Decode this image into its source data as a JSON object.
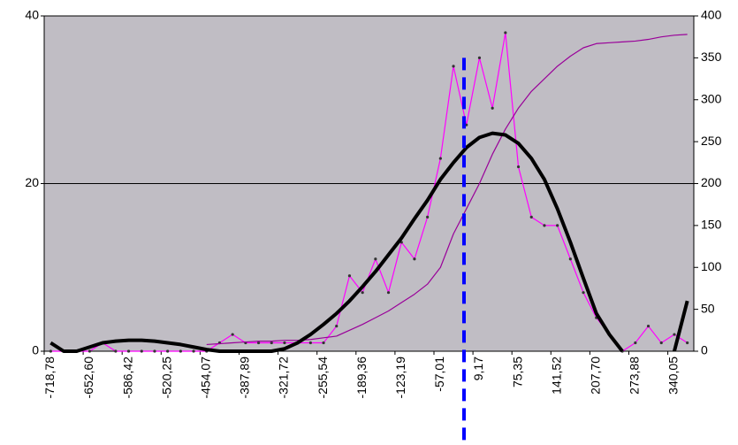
{
  "chart_data": {
    "type": "line",
    "categories": [
      "-718,78",
      null,
      null,
      "-652,60",
      null,
      null,
      "-586,42",
      null,
      null,
      "-520,25",
      null,
      null,
      "-454,07",
      null,
      null,
      "-387,89",
      null,
      null,
      "-321,72",
      null,
      null,
      "-255,54",
      null,
      null,
      "-189,36",
      null,
      null,
      "-123,19",
      null,
      null,
      "-57,01",
      null,
      null,
      "9,17",
      null,
      null,
      "75,35",
      null,
      null,
      "141,52",
      null,
      null,
      "207,70",
      null,
      null,
      "273,88",
      null,
      null,
      "340,05",
      null
    ],
    "xlim": [
      -729.81,
      373.19
    ],
    "ylim": [
      0,
      40
    ],
    "yticks": [
      0,
      20,
      40
    ],
    "y2lim": [
      0,
      400
    ],
    "y2ticks": [
      0,
      50,
      100,
      150,
      200,
      250,
      300,
      350,
      400
    ],
    "grid": true,
    "series": [
      {
        "color": "#ff00ff",
        "values": [
          0,
          0,
          0,
          0,
          1,
          0,
          0,
          0,
          0,
          0,
          0,
          0,
          0,
          1,
          2,
          1,
          1,
          1,
          1,
          1,
          1,
          1,
          3,
          9,
          7,
          11,
          7,
          13,
          11,
          16,
          23,
          34,
          27,
          35,
          29,
          38,
          22,
          16,
          15,
          15,
          11,
          7,
          4,
          2,
          0,
          1,
          3,
          1,
          2,
          1
        ]
      },
      {
        "color": "#990099",
        "axis": "y2",
        "values": [
          null,
          null,
          null,
          null,
          null,
          null,
          null,
          null,
          null,
          null,
          null,
          null,
          8,
          9,
          10,
          11,
          12,
          12,
          13,
          13,
          14,
          16,
          18,
          25,
          32,
          40,
          48,
          58,
          68,
          80,
          100,
          140,
          170,
          200,
          235,
          265,
          290,
          310,
          325,
          340,
          352,
          362,
          367,
          368,
          369,
          370,
          372,
          375,
          377,
          378
        ]
      },
      {
        "color": "#000000",
        "values": [
          1,
          0,
          0,
          0.5,
          1,
          1.2,
          1.3,
          1.3,
          1.2,
          1,
          0.8,
          0.5,
          0.2,
          0,
          0,
          0,
          0,
          0,
          0.3,
          1,
          2,
          3.2,
          4.5,
          6,
          7.7,
          9.5,
          11.5,
          13.5,
          15.8,
          18,
          20.5,
          22.5,
          24.3,
          25.5,
          26,
          25.8,
          24.8,
          23,
          20.5,
          17,
          13,
          8.7,
          4.5,
          2,
          0,
          null,
          null,
          null,
          0,
          6
        ]
      }
    ],
    "vline": {
      "x": -17,
      "y": 35,
      "color": "#0000ff"
    }
  }
}
